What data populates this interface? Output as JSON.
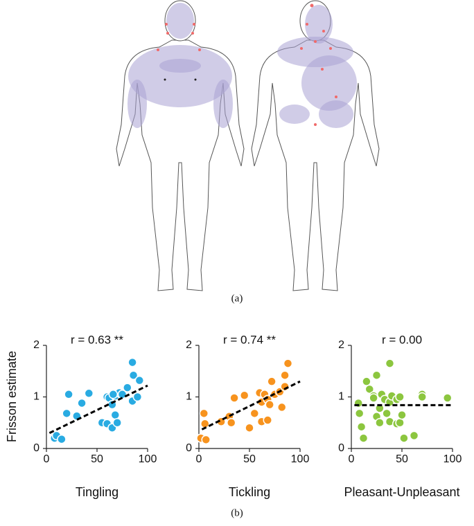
{
  "panel_a_label": "(a)",
  "panel_b_label": "(b)",
  "chart_data": [
    {
      "type": "scatter",
      "ylabel": "Frisson estimate",
      "xlabel": "Tingling",
      "annotation": "r = 0.63 **",
      "color": "#29abe2",
      "x": [
        8,
        10,
        15,
        20,
        22,
        30,
        35,
        42,
        55,
        60,
        60,
        62,
        65,
        65,
        68,
        68,
        70,
        72,
        75,
        80,
        85,
        86,
        85,
        90,
        92,
        66
      ],
      "y": [
        0.2,
        0.25,
        0.18,
        0.68,
        1.05,
        0.63,
        0.88,
        1.07,
        0.5,
        0.48,
        1.0,
        0.98,
        0.4,
        0.85,
        1.02,
        0.65,
        0.5,
        1.08,
        1.05,
        1.18,
        0.92,
        1.42,
        1.67,
        1.0,
        1.32,
        1.05
      ],
      "trend": {
        "x": [
          3,
          100
        ],
        "y": [
          0.3,
          1.22
        ]
      },
      "xlim": [
        0,
        100
      ],
      "ylim": [
        0,
        2
      ],
      "xticks": [
        0,
        50,
        100
      ],
      "yticks": [
        0,
        1,
        2
      ]
    },
    {
      "type": "scatter",
      "xlabel": "Tickling",
      "annotation": "r = 0.74 **",
      "color": "#f7931e",
      "x": [
        2,
        5,
        6,
        7,
        22,
        30,
        32,
        35,
        45,
        50,
        55,
        60,
        62,
        62,
        65,
        68,
        70,
        72,
        75,
        80,
        82,
        85,
        85,
        88,
        68
      ],
      "y": [
        0.2,
        0.68,
        0.48,
        0.17,
        0.52,
        0.62,
        0.5,
        0.98,
        1.03,
        0.4,
        0.68,
        1.08,
        0.52,
        0.9,
        1.05,
        0.95,
        0.85,
        1.3,
        1.05,
        1.1,
        0.8,
        1.2,
        1.42,
        1.65,
        0.55
      ],
      "trend": {
        "x": [
          3,
          100
        ],
        "y": [
          0.37,
          1.3
        ]
      },
      "xlim": [
        0,
        100
      ],
      "ylim": [
        0,
        2
      ],
      "xticks": [
        0,
        50,
        100
      ],
      "yticks": [
        0,
        1,
        2
      ]
    },
    {
      "type": "scatter",
      "xlabel": "Pleasant-Unpleasant",
      "annotation": "r = 0.00",
      "color": "#8cc63f",
      "x": [
        7,
        8,
        10,
        12,
        15,
        18,
        22,
        22,
        25,
        25,
        28,
        28,
        30,
        33,
        35,
        38,
        38,
        38,
        40,
        45,
        45,
        48,
        48,
        50,
        52,
        62,
        70,
        70,
        95
      ],
      "y": [
        0.88,
        0.68,
        0.42,
        0.2,
        1.3,
        1.15,
        1.02,
        0.98,
        0.62,
        1.42,
        0.78,
        0.5,
        1.05,
        0.95,
        0.68,
        1.65,
        0.9,
        0.52,
        1.02,
        0.48,
        0.95,
        0.5,
        1.0,
        0.65,
        0.2,
        0.25,
        1.05,
        1.0,
        0.98
      ],
      "trend": {
        "x": [
          3,
          100
        ],
        "y": [
          0.84,
          0.84
        ]
      },
      "xlim": [
        0,
        100
      ],
      "ylim": [
        0,
        2
      ],
      "xticks": [
        0,
        50,
        100
      ],
      "yticks": [
        0,
        1,
        2
      ]
    }
  ]
}
